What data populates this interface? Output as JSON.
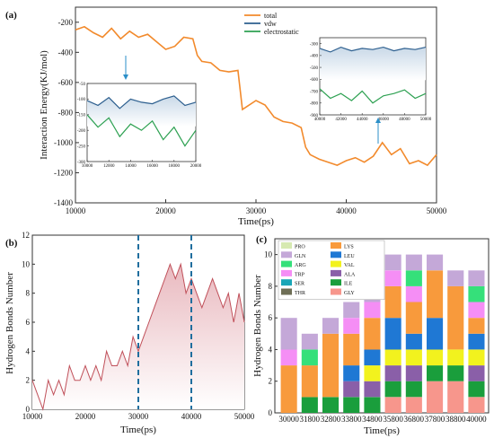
{
  "chart_data": [
    {
      "panel": "(a)",
      "type": "line",
      "xlabel": "Time(ps)",
      "ylabel": "Interaction Energy(KJ/mol)",
      "xlim": [
        10000,
        50000
      ],
      "ylim": [
        -1400,
        -100
      ],
      "xticks": [
        10000,
        20000,
        30000,
        40000,
        50000
      ],
      "yticks": [
        -200,
        -400,
        -600,
        -800,
        -1000,
        -1200,
        -1400
      ],
      "legend": {
        "position": "top-center",
        "entries": [
          "total",
          "vdw",
          "electrostatic"
        ]
      },
      "colors": {
        "total": "#f28a2c",
        "vdw": "#2d5f8f",
        "electrostatic": "#2ea152"
      },
      "series": [
        {
          "name": "total",
          "x": [
            10000,
            11000,
            12000,
            13000,
            14000,
            15000,
            16000,
            17000,
            18000,
            19000,
            20000,
            21000,
            22000,
            23000,
            23500,
            24000,
            25000,
            26000,
            27000,
            28000,
            28500,
            29000,
            30000,
            31000,
            32000,
            33000,
            34000,
            35000,
            35500,
            36000,
            37000,
            38000,
            39000,
            40000,
            41000,
            42000,
            43000,
            44000,
            45000,
            46000,
            47000,
            48000,
            49000,
            50000
          ],
          "y": [
            -250,
            -230,
            -270,
            -300,
            -240,
            -310,
            -260,
            -300,
            -280,
            -330,
            -380,
            -360,
            -300,
            -310,
            -420,
            -460,
            -470,
            -520,
            -530,
            -520,
            -780,
            -760,
            -720,
            -750,
            -830,
            -860,
            -870,
            -900,
            -1030,
            -1080,
            -1110,
            -1130,
            -1150,
            -1120,
            -1100,
            -1130,
            -1090,
            -1000,
            -1080,
            -1040,
            -1140,
            -1120,
            -1150,
            -1080
          ]
        }
      ],
      "insets": [
        {
          "placement": "left",
          "xlim": [
            10000,
            20000
          ],
          "ylim": [
            -300,
            -50
          ],
          "xticks": [
            10000,
            12000,
            14000,
            16000,
            18000,
            20000
          ],
          "yticks": [
            -50,
            -100,
            -150,
            -200,
            -250,
            -300
          ],
          "series": [
            {
              "name": "vdw",
              "x": [
                10000,
                11000,
                12000,
                13000,
                14000,
                15000,
                16000,
                17000,
                18000,
                19000,
                20000
              ],
              "y": [
                -105,
                -120,
                -95,
                -130,
                -100,
                -110,
                -115,
                -100,
                -90,
                -120,
                -110
              ]
            },
            {
              "name": "electrostatic",
              "x": [
                10000,
                11000,
                12000,
                13000,
                14000,
                15000,
                16000,
                17000,
                18000,
                19000,
                20000
              ],
              "y": [
                -150,
                -190,
                -160,
                -220,
                -180,
                -200,
                -170,
                -230,
                -190,
                -250,
                -200
              ]
            }
          ]
        },
        {
          "placement": "right",
          "xlim": [
            40000,
            50000
          ],
          "ylim": [
            -900,
            -250
          ],
          "xticks": [
            40000,
            42000,
            44000,
            46000,
            48000,
            50000
          ],
          "yticks": [
            -300,
            -400,
            -500,
            -600,
            -700,
            -800,
            -900
          ],
          "series": [
            {
              "name": "vdw",
              "x": [
                40000,
                41000,
                42000,
                43000,
                44000,
                45000,
                46000,
                47000,
                48000,
                49000,
                50000
              ],
              "y": [
                -340,
                -370,
                -330,
                -360,
                -340,
                -350,
                -330,
                -360,
                -340,
                -350,
                -330
              ]
            },
            {
              "name": "electrostatic",
              "x": [
                40000,
                41000,
                42000,
                43000,
                44000,
                45000,
                46000,
                47000,
                48000,
                49000,
                50000
              ],
              "y": [
                -680,
                -760,
                -720,
                -780,
                -700,
                -800,
                -740,
                -720,
                -690,
                -760,
                -720
              ]
            }
          ]
        }
      ]
    },
    {
      "panel": "(b)",
      "type": "line",
      "xlabel": "Time(ps)",
      "ylabel": "Hydrogen Bonds Number",
      "xlim": [
        10000,
        50000
      ],
      "ylim": [
        0,
        12
      ],
      "xticks": [
        10000,
        20000,
        30000,
        40000,
        50000
      ],
      "yticks": [
        0,
        2,
        4,
        6,
        8,
        10,
        12
      ],
      "color": "#c0505a",
      "vlines": [
        30000,
        40000
      ],
      "series": [
        {
          "name": "",
          "x": [
            10000,
            11000,
            12000,
            13000,
            14000,
            15000,
            16000,
            17000,
            18000,
            19000,
            20000,
            21000,
            22000,
            23000,
            24000,
            25000,
            26000,
            27000,
            28000,
            29000,
            30000,
            31000,
            32000,
            33000,
            34000,
            35000,
            36000,
            37000,
            38000,
            39000,
            40000,
            41000,
            42000,
            43000,
            44000,
            45000,
            46000,
            47000,
            48000,
            49000,
            50000
          ],
          "y": [
            2,
            1,
            0,
            2,
            1,
            2,
            1,
            3,
            2,
            2,
            3,
            2,
            3,
            2,
            4,
            3,
            3,
            4,
            3,
            5,
            4,
            5,
            6,
            7,
            8,
            9,
            10,
            9,
            10,
            8,
            9,
            8,
            7,
            8,
            9,
            8,
            7,
            8,
            6,
            8,
            6
          ]
        }
      ]
    },
    {
      "panel": "(c)",
      "type": "bar",
      "stacked": true,
      "xlabel": "Time(ps)",
      "ylabel": "Hydrogen Bonds Number",
      "ylim": [
        0,
        11
      ],
      "yticks": [
        0,
        2,
        4,
        6,
        8,
        10
      ],
      "categories": [
        "30000",
        "31800",
        "32800",
        "33800",
        "34800",
        "35800",
        "36800",
        "37800",
        "38800",
        "40000"
      ],
      "legend": {
        "position": "top-left",
        "columns": 2
      },
      "series": [
        {
          "name": "GLY",
          "color": "#f7968c",
          "values": [
            0,
            0,
            0,
            0,
            0,
            1,
            1,
            2,
            2,
            1
          ]
        },
        {
          "name": "ILE",
          "color": "#1a9e3c",
          "values": [
            0,
            1,
            1,
            1,
            1,
            1,
            1,
            1,
            1,
            1
          ]
        },
        {
          "name": "ALA",
          "color": "#8a5fa8",
          "values": [
            0,
            0,
            0,
            1,
            1,
            1,
            1,
            0,
            0,
            1
          ]
        },
        {
          "name": "VAL",
          "color": "#f2f21e",
          "values": [
            0,
            0,
            0,
            0,
            1,
            1,
            1,
            1,
            1,
            1
          ]
        },
        {
          "name": "LEU",
          "color": "#1f78d4",
          "values": [
            0,
            0,
            0,
            1,
            1,
            2,
            1,
            2,
            0,
            1
          ]
        },
        {
          "name": "LYS",
          "color": "#f89a3c",
          "values": [
            3,
            2,
            4,
            2,
            2,
            2,
            2,
            3,
            4,
            1
          ]
        },
        {
          "name": "THR",
          "color": "#6e6e55",
          "values": [
            0,
            0,
            0,
            0,
            0,
            0,
            0,
            0,
            0,
            0
          ]
        },
        {
          "name": "SER",
          "color": "#1aa6b7",
          "values": [
            0,
            0,
            0,
            0,
            0,
            0,
            0,
            0,
            0,
            0
          ]
        },
        {
          "name": "TRP",
          "color": "#f58ef5",
          "values": [
            1,
            0,
            0,
            1,
            1,
            1,
            1,
            0,
            0,
            1
          ]
        },
        {
          "name": "ARG",
          "color": "#35e07a",
          "values": [
            0,
            1,
            0,
            0,
            0,
            0,
            1,
            0,
            0,
            1
          ]
        },
        {
          "name": "GLN",
          "color": "#c4a8d8",
          "values": [
            2,
            1,
            1,
            1,
            1,
            1,
            1,
            1,
            1,
            1
          ]
        },
        {
          "name": "PRO",
          "color": "#d6e9b1",
          "values": [
            0,
            0,
            0,
            0,
            0,
            0,
            0,
            0,
            0,
            0
          ]
        }
      ]
    }
  ]
}
